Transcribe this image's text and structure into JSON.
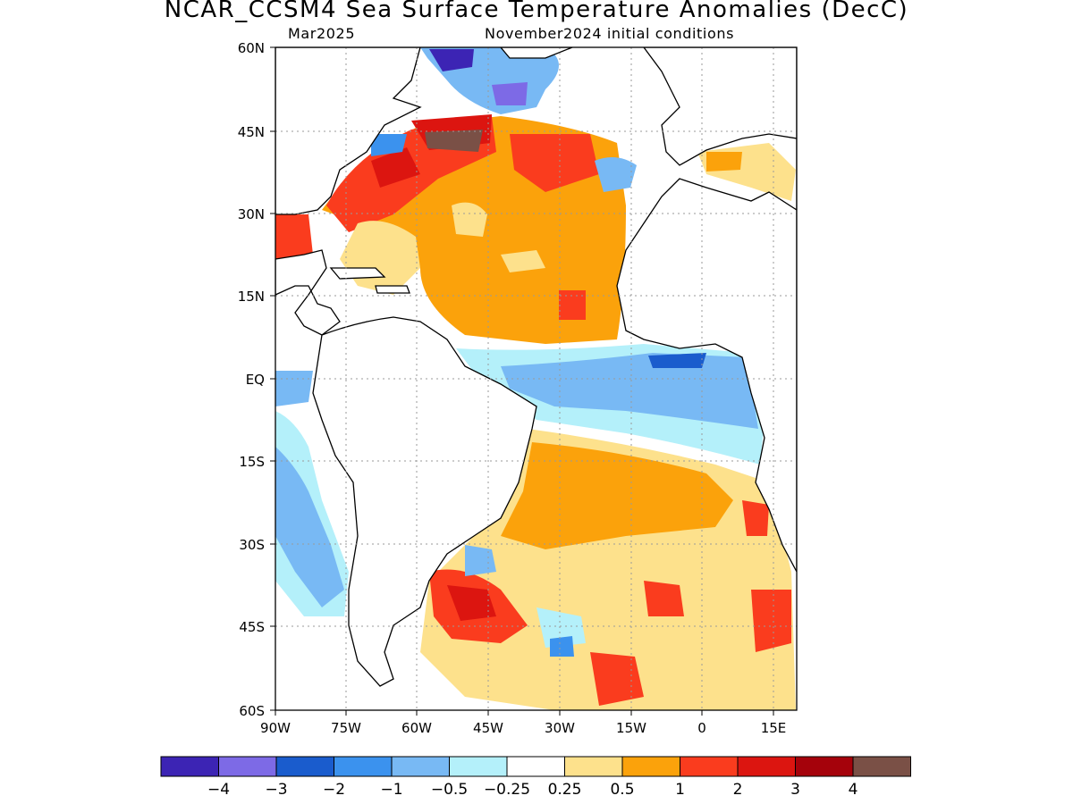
{
  "title": "NCAR_CCSM4 Sea Surface Temperature Anomalies (DecC)",
  "subtitle_left": "Mar2025",
  "subtitle_right": "November2024 initial conditions",
  "map": {
    "lon_range": [
      -90,
      20
    ],
    "lat_range": [
      -60,
      60
    ],
    "grid": true,
    "lat_ticks": [
      "60N",
      "45N",
      "30N",
      "15N",
      "EQ",
      "15S",
      "30S",
      "45S",
      "60S"
    ],
    "lon_ticks": [
      "90W",
      "75W",
      "60W",
      "45W",
      "30W",
      "15W",
      "0",
      "15E"
    ]
  },
  "colorbar": {
    "colors": [
      "#3c24b4",
      "#7d6ae6",
      "#1a5ccd",
      "#3b92ee",
      "#78b9f4",
      "#b4f0fa",
      "#ffffff",
      "#fde18c",
      "#fba20b",
      "#fa3c1e",
      "#dc1510",
      "#a5020b",
      "#7a5046"
    ],
    "labels": [
      "-4",
      "-3",
      "-2",
      "-1",
      "-0.5",
      "-0.25",
      "0.25",
      "0.5",
      "1",
      "2",
      "3",
      "4"
    ]
  }
}
